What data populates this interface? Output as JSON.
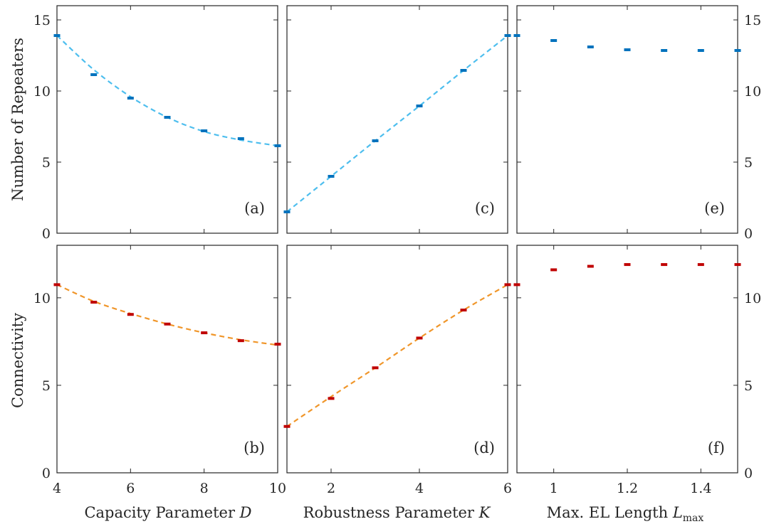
{
  "colors": {
    "repeater_marker": "#0072bd",
    "repeater_fit": "#4dbeee",
    "connectivity_marker": "#c00000",
    "connectivity_fit": "#f0962a",
    "axis": "#262626"
  },
  "row_labels": {
    "top": "Number of Repeaters",
    "bottom": "Connectivity"
  },
  "column_labels": [
    {
      "text": "Capacity Parameter ",
      "var": "D",
      "sub": ""
    },
    {
      "text": "Robustness Parameter ",
      "var": "K",
      "sub": ""
    },
    {
      "text": "Max. EL Length ",
      "var": "L",
      "sub": "max"
    }
  ],
  "chart_data": [
    {
      "panel": "(a)",
      "type": "scatter",
      "x": [
        4,
        5,
        6,
        7,
        8,
        9,
        10
      ],
      "y": [
        13.9,
        11.15,
        9.5,
        8.15,
        7.2,
        6.65,
        6.15
      ],
      "fit": {
        "x": [
          4,
          5,
          6,
          7,
          8,
          9,
          10
        ],
        "y": [
          13.9,
          11.5,
          9.6,
          8.15,
          7.15,
          6.55,
          6.15
        ]
      },
      "xlim": [
        4,
        10
      ],
      "ylim": [
        0,
        16
      ],
      "xticks": [
        4,
        6,
        8,
        10
      ],
      "yticks": [
        0,
        5,
        10,
        15
      ],
      "ylabel_side": "left",
      "show_xticklabels": false
    },
    {
      "panel": "(b)",
      "type": "scatter",
      "x": [
        4,
        5,
        6,
        7,
        8,
        9,
        10
      ],
      "y": [
        10.75,
        9.75,
        9.05,
        8.5,
        8.0,
        7.55,
        7.35
      ],
      "fit": {
        "x": [
          4,
          5,
          6,
          7,
          8,
          9,
          10
        ],
        "y": [
          10.75,
          9.8,
          9.1,
          8.5,
          8.0,
          7.6,
          7.3
        ]
      },
      "xlim": [
        4,
        10
      ],
      "ylim": [
        0,
        13
      ],
      "xticks": [
        4,
        6,
        8,
        10
      ],
      "yticks": [
        0,
        5,
        10
      ],
      "xticklabels": [
        "4",
        "6",
        "8",
        "10"
      ],
      "ylabel_side": "left",
      "show_xticklabels": true
    },
    {
      "panel": "(c)",
      "type": "scatter",
      "x": [
        1,
        2,
        3,
        4,
        5,
        6
      ],
      "y": [
        1.5,
        4.0,
        6.5,
        8.95,
        11.45,
        13.9
      ],
      "fit": {
        "x": [
          1,
          2,
          3,
          4,
          5,
          6
        ],
        "y": [
          1.5,
          4.0,
          6.5,
          8.95,
          11.45,
          13.9
        ]
      },
      "xlim": [
        1,
        6
      ],
      "ylim": [
        0,
        16
      ],
      "xticks": [
        2,
        4,
        6
      ],
      "yticks": [
        0,
        5,
        10,
        15
      ],
      "ylabel_side": "none",
      "show_xticklabels": false
    },
    {
      "panel": "(d)",
      "type": "scatter",
      "x": [
        1,
        2,
        3,
        4,
        5,
        6
      ],
      "y": [
        2.65,
        4.25,
        6.0,
        7.7,
        9.3,
        10.75
      ],
      "fit": {
        "x": [
          1,
          2,
          3,
          4,
          5,
          6
        ],
        "y": [
          2.65,
          4.35,
          6.0,
          7.7,
          9.3,
          10.75
        ]
      },
      "xlim": [
        1,
        6
      ],
      "ylim": [
        0,
        13
      ],
      "xticks": [
        2,
        4,
        6
      ],
      "yticks": [
        0,
        5,
        10
      ],
      "xticklabels": [
        "2",
        "4",
        "6"
      ],
      "ylabel_side": "none",
      "show_xticklabels": true
    },
    {
      "panel": "(e)",
      "type": "scatter",
      "x": [
        0.9,
        1.0,
        1.1,
        1.2,
        1.3,
        1.4,
        1.5
      ],
      "y": [
        13.9,
        13.55,
        13.1,
        12.9,
        12.85,
        12.85,
        12.85
      ],
      "xlim": [
        0.9,
        1.5
      ],
      "ylim": [
        0,
        16
      ],
      "xticks": [
        1.0,
        1.2,
        1.4
      ],
      "yticks": [
        0,
        5,
        10,
        15
      ],
      "ylabel_side": "right",
      "show_xticklabels": false
    },
    {
      "panel": "(f)",
      "type": "scatter",
      "x": [
        0.9,
        1.0,
        1.1,
        1.2,
        1.3,
        1.4,
        1.5
      ],
      "y": [
        10.75,
        11.6,
        11.8,
        11.9,
        11.9,
        11.9,
        11.9
      ],
      "xlim": [
        0.9,
        1.5
      ],
      "ylim": [
        0,
        13
      ],
      "xticks": [
        1.0,
        1.2,
        1.4
      ],
      "yticks": [
        0,
        5,
        10
      ],
      "xticklabels": [
        "1",
        "1.2",
        "1.4"
      ],
      "ylabel_side": "right",
      "show_xticklabels": true
    }
  ]
}
